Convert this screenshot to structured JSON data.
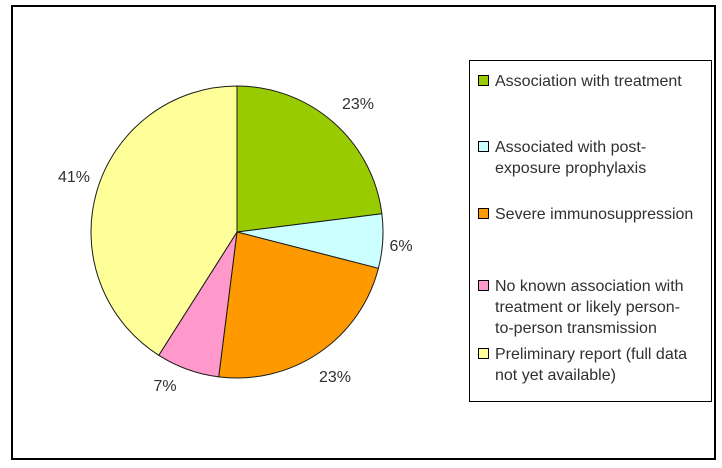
{
  "chart_data": {
    "type": "pie",
    "title": "",
    "labels_style": "outside-percent",
    "legend_position": "right",
    "start_angle_deg": 0,
    "direction": "clockwise",
    "total": 100,
    "slices": [
      {
        "id": "association-with-treatment",
        "label": "Association with treatment",
        "label_lines": [
          "Association with treatment"
        ],
        "value": 23,
        "pct_label": "23%",
        "color": "#99CC00"
      },
      {
        "id": "post-exposure-prophylaxis",
        "label": "Associated with post-exposure prophylaxis",
        "label_lines": [
          "Associated with post-",
          "exposure prophylaxis"
        ],
        "value": 6,
        "pct_label": "6%",
        "color": "#CCFFFF"
      },
      {
        "id": "severe-immunosuppression",
        "label": "Severe immunosuppression",
        "label_lines": [
          "Severe immunosuppression"
        ],
        "value": 23,
        "pct_label": "23%",
        "color": "#FF9900"
      },
      {
        "id": "no-known-association",
        "label": "No known association with treatment or likely person-to-person transmission",
        "label_lines": [
          "No known association with",
          "treatment or likely person-",
          "to-person transmission"
        ],
        "value": 7,
        "pct_label": "7%",
        "color": "#FF99CC"
      },
      {
        "id": "preliminary-report",
        "label": "Preliminary report (full data not yet available)",
        "label_lines": [
          "Preliminary report (full data",
          "not yet available)"
        ],
        "value": 41,
        "pct_label": "41%",
        "color": "#FFFF99"
      }
    ]
  },
  "colors": {
    "background": "#FFFFFF",
    "frame_border": "#000000",
    "legend_border": "#000000",
    "slice_outline": "#1A1A1A",
    "text": "#303030"
  }
}
